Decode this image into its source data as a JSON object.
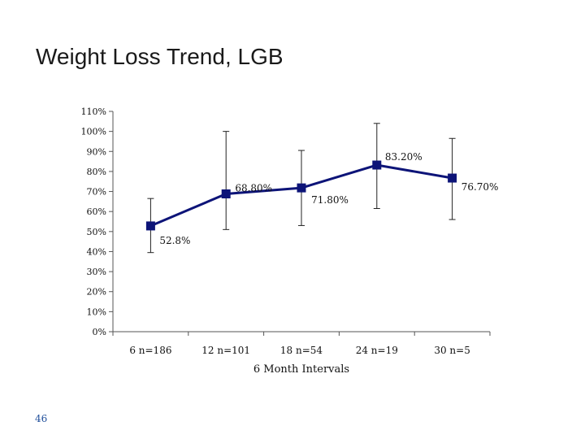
{
  "slide": {
    "title": "Weight Loss Trend, LGB",
    "page_number": "46"
  },
  "colors": {
    "series": "#0d1478",
    "axis": "#555555",
    "error_bar": "#222222",
    "page_number": "#1f4e9a"
  },
  "chart_data": {
    "type": "line",
    "title": "",
    "xlabel": "6 Month Intervals",
    "ylabel": "",
    "ylim": [
      0,
      110
    ],
    "yticks": [
      0,
      10,
      20,
      30,
      40,
      50,
      60,
      70,
      80,
      90,
      100,
      110
    ],
    "ytick_labels": [
      "0%",
      "10%",
      "20%",
      "30%",
      "40%",
      "50%",
      "60%",
      "70%",
      "80%",
      "90%",
      "100%",
      "110%"
    ],
    "categories": [
      "6  n=186",
      "12  n=101",
      "18  n=54",
      "24  n=19",
      "30  n=5"
    ],
    "series": [
      {
        "values": [
          52.8,
          68.8,
          71.8,
          83.2,
          76.7
        ],
        "data_labels": [
          "52.8%",
          "68.80%",
          "71.80%",
          "83.20%",
          "76.70%"
        ],
        "error_low": [
          39.5,
          51,
          53,
          61.5,
          56
        ],
        "error_high": [
          66.5,
          100,
          90.5,
          104,
          96.5
        ]
      }
    ],
    "grid": false,
    "legend": "none",
    "marker": "square"
  }
}
